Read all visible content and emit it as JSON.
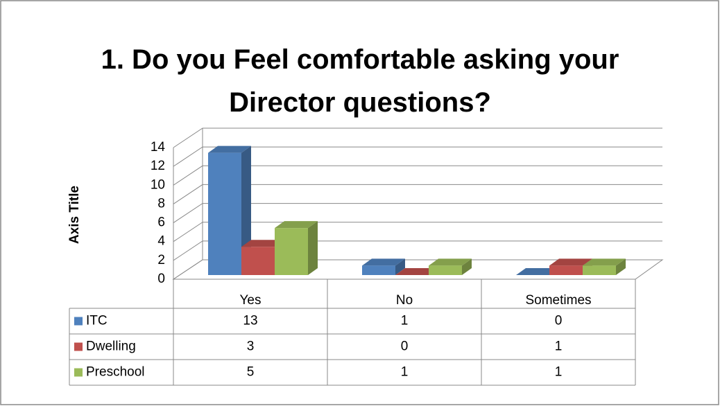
{
  "chart_data": {
    "type": "bar3d",
    "title": "1. Do you Feel comfortable asking your Director questions?",
    "y_axis_title": "Axis Title",
    "categories": [
      "Yes",
      "No",
      "Sometimes"
    ],
    "series": [
      {
        "name": "ITC",
        "color": "#4f81bd",
        "values": [
          13,
          1,
          0
        ]
      },
      {
        "name": "Dwelling",
        "color": "#c0504d",
        "values": [
          3,
          0,
          1
        ]
      },
      {
        "name": "Preschool",
        "color": "#9bbb59",
        "values": [
          5,
          1,
          1
        ]
      }
    ],
    "ylim": [
      0,
      14
    ],
    "yticks": [
      0,
      2,
      4,
      6,
      8,
      10,
      12,
      14
    ],
    "grid": true,
    "data_table": true
  }
}
